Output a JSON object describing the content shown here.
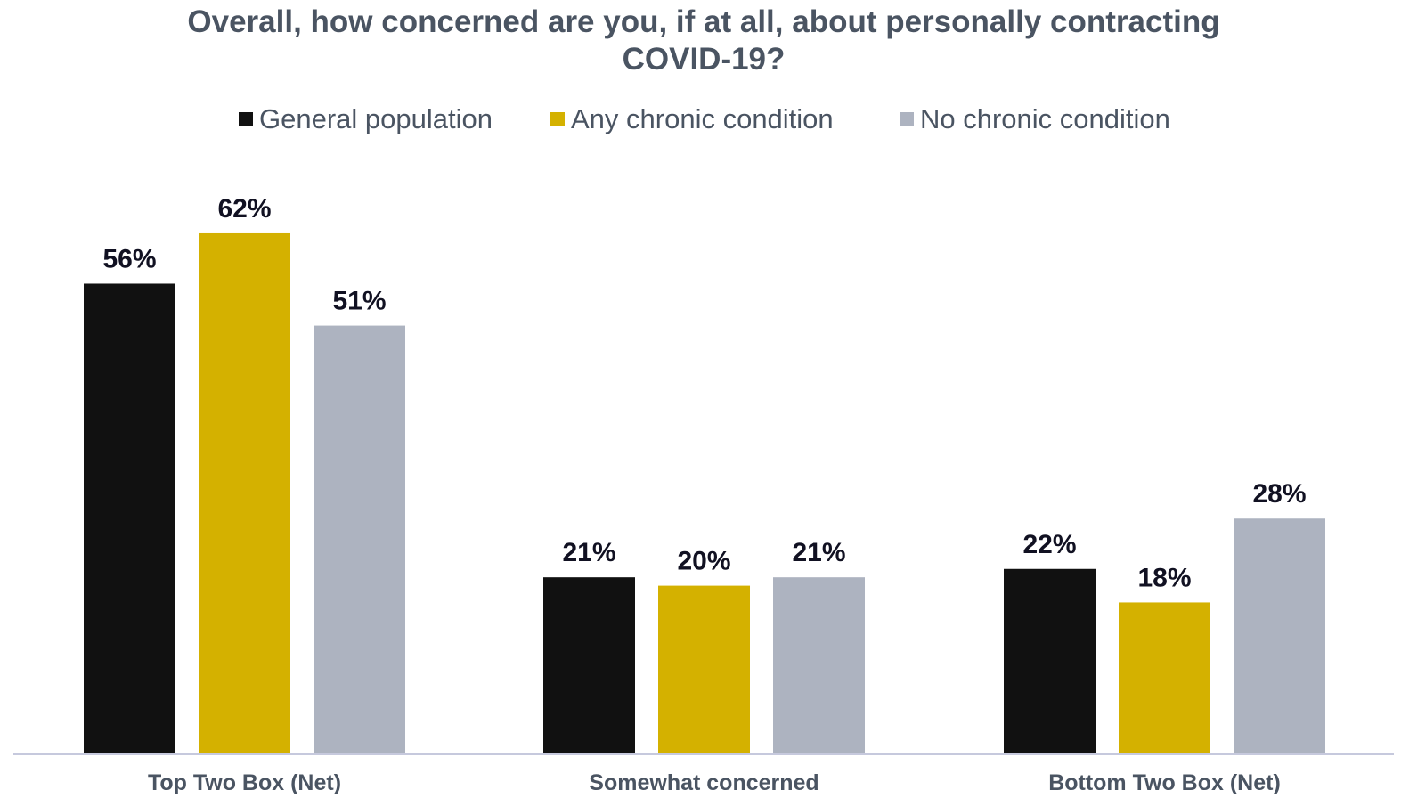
{
  "chart_data": {
    "type": "bar",
    "title": "Overall, how concerned are you, if at all, about personally contracting COVID-19?",
    "categories": [
      "Top Two Box (Net)",
      "Somewhat concerned",
      "Bottom Two Box (Net)"
    ],
    "series": [
      {
        "name": "General population",
        "values": [
          56,
          21,
          22
        ],
        "labels": [
          "56%",
          "21%",
          "22%"
        ],
        "color": "#111111"
      },
      {
        "name": "Any chronic condition",
        "values": [
          62,
          20,
          18
        ],
        "labels": [
          "62%",
          "20%",
          "18%"
        ],
        "color": "#d4b100"
      },
      {
        "name": "No chronic condition",
        "values": [
          51,
          21,
          28
        ],
        "labels": [
          "51%",
          "21%",
          "28%"
        ],
        "color": "#adb3c0"
      }
    ],
    "xlabel": "",
    "ylabel": "",
    "ylim": [
      0,
      62
    ],
    "grid": false,
    "legend_position": "top"
  },
  "title_lines": [
    "Overall, how concerned are you, if at all, about personally contracting",
    "COVID-19?"
  ],
  "colors": {
    "title_text": "#4a5462",
    "axis_line": "#c6c9dd",
    "data_label_text": "#111122"
  }
}
